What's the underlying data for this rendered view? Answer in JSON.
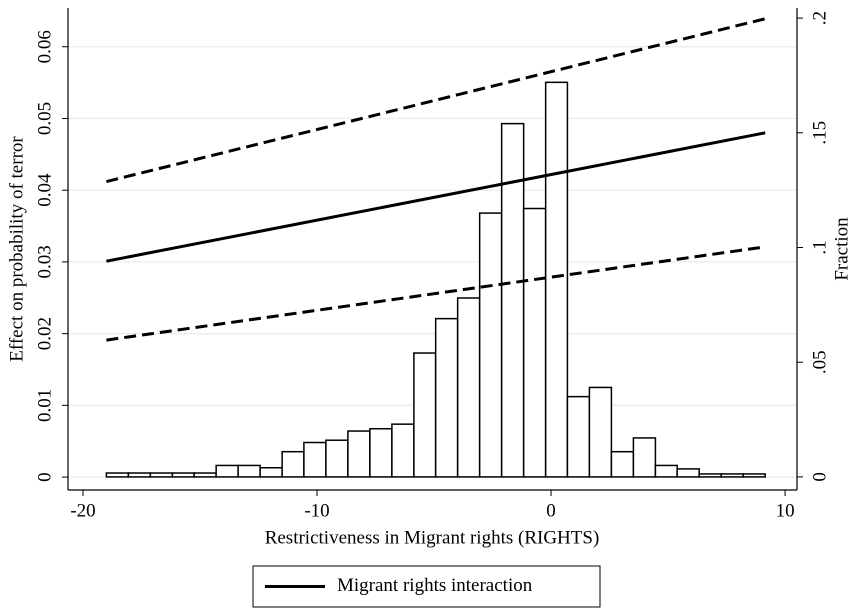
{
  "chart_data": {
    "type": "line",
    "xlabel": "Restrictiveness in Migrant rights (RIGHTS)",
    "ylabel": "Effect on probability of terror",
    "y2label": "Fraction",
    "xlim": [
      -20.64,
      10.51
    ],
    "xticks": [
      -20,
      -10,
      0,
      10
    ],
    "ylim": [
      -0.0018,
      0.0654
    ],
    "yticks": [
      0,
      0.01,
      0.02,
      0.03,
      0.04,
      0.05,
      0.06
    ],
    "y2lim": [
      -0.0057,
      0.2044
    ],
    "y2ticks": [
      0,
      {
        "value": 0.05,
        "label": ".05"
      },
      {
        "value": 0.1,
        "label": ".1"
      },
      {
        "value": 0.15,
        "label": ".15"
      },
      {
        "value": 0.2,
        "label": ".2"
      }
    ],
    "grid": true,
    "legend": "bottom",
    "series": [
      {
        "type": "histogram",
        "axis": "y2",
        "color": "#ffffff",
        "edgecolor": "#000000",
        "bins": [
          -19.0,
          -18.06,
          -17.12,
          -16.18,
          -15.25,
          -14.31,
          -13.37,
          -12.43,
          -11.49,
          -10.56,
          -9.62,
          -8.68,
          -7.74,
          -6.8,
          -5.86,
          -4.93,
          -3.99,
          -3.05,
          -2.11,
          -1.17,
          -0.23,
          0.7,
          1.64,
          2.58,
          3.52,
          4.46,
          5.39,
          6.33,
          7.27,
          8.21,
          9.15
        ],
        "values": [
          0.0017,
          0.0017,
          0.0017,
          0.0017,
          0.0017,
          0.005,
          0.005,
          0.004,
          0.011,
          0.015,
          0.016,
          0.02,
          0.021,
          0.023,
          0.054,
          0.069,
          0.078,
          0.115,
          0.154,
          0.117,
          0.172,
          0.035,
          0.039,
          0.011,
          0.017,
          0.005,
          0.0035,
          0.0013,
          0.0013,
          0.0013
        ]
      },
      {
        "type": "line",
        "dash": true,
        "color": "#000000",
        "x": [
          -19,
          9.15
        ],
        "values": [
          0.0412,
          0.0639
        ]
      },
      {
        "type": "line",
        "name": "Migrant rights interaction",
        "color": "#000000",
        "x": [
          -19,
          9.15
        ],
        "values": [
          0.0301,
          0.048
        ]
      },
      {
        "type": "line",
        "dash": true,
        "color": "#000000",
        "x": [
          -19,
          9.15
        ],
        "values": [
          0.0191,
          0.0321
        ]
      }
    ]
  }
}
